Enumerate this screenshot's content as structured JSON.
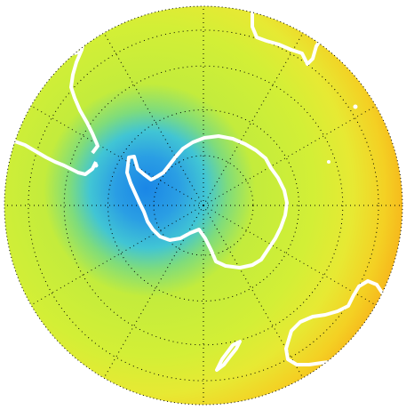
{
  "map": {
    "projection": "south-polar-stereographic",
    "field_colors": {
      "outer_ring": "#f7b21a",
      "outer_band": "#f2d532",
      "mid_band": "#c8ee3a",
      "inner_band": "#8fe06f",
      "low_band": "#35c8d5",
      "min_core": "#1a86e6",
      "coastline": "#ffffff",
      "grid": "#000000"
    },
    "grid": {
      "latitude_circles": true,
      "longitude_spokes": true,
      "line_style": "dotted"
    },
    "features": [
      "antarctica",
      "south-america",
      "africa",
      "australia",
      "new-zealand"
    ]
  }
}
